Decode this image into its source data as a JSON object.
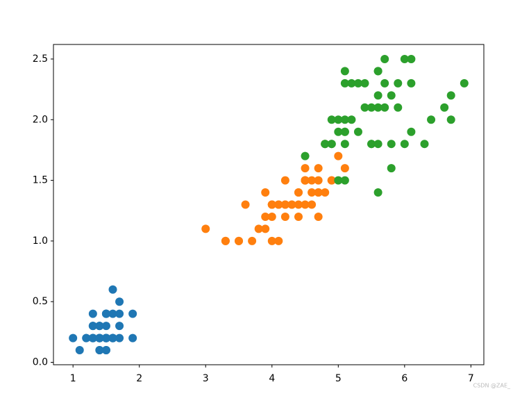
{
  "chart_data": {
    "type": "scatter",
    "xlim": [
      0.705,
      7.195
    ],
    "ylim": [
      -0.02,
      2.62
    ],
    "xticks": [
      1,
      2,
      3,
      4,
      5,
      6,
      7
    ],
    "yticks": [
      {
        "value": 0,
        "label": "0.0"
      },
      0.5,
      {
        "value": 1,
        "label": "1.0"
      },
      1.5,
      {
        "value": 2,
        "label": "2.0"
      },
      2.5
    ],
    "grid": false,
    "series": [
      {
        "color": "#1f77b4",
        "x": [
          1.4,
          1.4,
          1.3,
          1.5,
          1.4,
          1.7,
          1.4,
          1.5,
          1.4,
          1.5,
          1.5,
          1.6,
          1.4,
          1.1,
          1.2,
          1.5,
          1.3,
          1.4,
          1.7,
          1.5,
          1.7,
          1.5,
          1.0,
          1.7,
          1.9,
          1.6,
          1.6,
          1.5,
          1.4,
          1.6,
          1.6,
          1.5,
          1.5,
          1.4,
          1.5,
          1.2,
          1.3,
          1.4,
          1.3,
          1.5,
          1.3,
          1.3,
          1.3,
          1.6,
          1.9,
          1.4,
          1.6,
          1.4,
          1.5,
          1.4
        ],
        "values": [
          0.2,
          0.2,
          0.2,
          0.2,
          0.2,
          0.4,
          0.3,
          0.2,
          0.2,
          0.1,
          0.2,
          0.2,
          0.1,
          0.1,
          0.2,
          0.4,
          0.4,
          0.3,
          0.3,
          0.3,
          0.2,
          0.4,
          0.2,
          0.5,
          0.2,
          0.2,
          0.4,
          0.2,
          0.2,
          0.2,
          0.2,
          0.4,
          0.1,
          0.2,
          0.2,
          0.2,
          0.2,
          0.1,
          0.2,
          0.2,
          0.3,
          0.3,
          0.2,
          0.6,
          0.4,
          0.3,
          0.2,
          0.2,
          0.2,
          0.2
        ]
      },
      {
        "color": "#ff7f0e",
        "x": [
          4.7,
          4.5,
          4.9,
          4.0,
          4.6,
          4.5,
          4.7,
          3.3,
          4.6,
          3.9,
          3.5,
          4.2,
          4.0,
          4.7,
          3.6,
          4.4,
          4.5,
          4.1,
          4.5,
          3.9,
          4.8,
          4.0,
          4.9,
          4.7,
          4.3,
          4.4,
          4.8,
          5.0,
          4.5,
          3.5,
          3.8,
          3.7,
          3.9,
          5.1,
          4.5,
          4.5,
          4.7,
          4.4,
          4.1,
          4.0,
          4.4,
          4.6,
          4.0,
          3.3,
          4.2,
          4.2,
          4.2,
          4.3,
          3.0,
          4.1
        ],
        "values": [
          1.4,
          1.5,
          1.5,
          1.3,
          1.5,
          1.3,
          1.6,
          1.0,
          1.3,
          1.4,
          1.0,
          1.5,
          1.0,
          1.4,
          1.3,
          1.4,
          1.5,
          1.0,
          1.5,
          1.1,
          1.8,
          1.3,
          1.5,
          1.2,
          1.3,
          1.4,
          1.4,
          1.7,
          1.5,
          1.0,
          1.1,
          1.0,
          1.2,
          1.6,
          1.5,
          1.6,
          1.5,
          1.3,
          1.3,
          1.3,
          1.2,
          1.4,
          1.2,
          1.0,
          1.3,
          1.2,
          1.3,
          1.3,
          1.1,
          1.3
        ]
      },
      {
        "color": "#2ca02c",
        "x": [
          6.0,
          5.1,
          5.9,
          5.6,
          5.8,
          6.6,
          4.5,
          6.3,
          5.8,
          6.1,
          5.1,
          5.3,
          5.5,
          5.0,
          5.1,
          5.3,
          5.5,
          6.7,
          6.9,
          5.0,
          5.7,
          4.9,
          6.7,
          4.9,
          5.7,
          6.0,
          4.8,
          4.9,
          5.6,
          5.8,
          6.1,
          6.4,
          5.6,
          5.1,
          5.6,
          6.1,
          5.6,
          5.5,
          4.8,
          5.4,
          5.6,
          5.1,
          5.1,
          5.9,
          5.7,
          5.2,
          5.0,
          5.2,
          5.4,
          5.1
        ],
        "values": [
          2.5,
          1.9,
          2.1,
          1.8,
          2.2,
          2.1,
          1.7,
          1.8,
          1.8,
          2.5,
          2.0,
          1.9,
          2.1,
          2.0,
          2.4,
          2.3,
          1.8,
          2.2,
          2.3,
          1.5,
          2.3,
          2.0,
          2.0,
          1.8,
          2.1,
          1.8,
          1.8,
          1.8,
          2.1,
          1.6,
          1.9,
          2.0,
          2.2,
          1.5,
          1.4,
          2.3,
          2.4,
          1.8,
          1.8,
          2.1,
          2.4,
          2.3,
          1.9,
          2.3,
          2.5,
          2.3,
          1.9,
          2.0,
          2.3,
          1.8
        ]
      }
    ]
  },
  "watermark": "CSDN @ZAE_"
}
